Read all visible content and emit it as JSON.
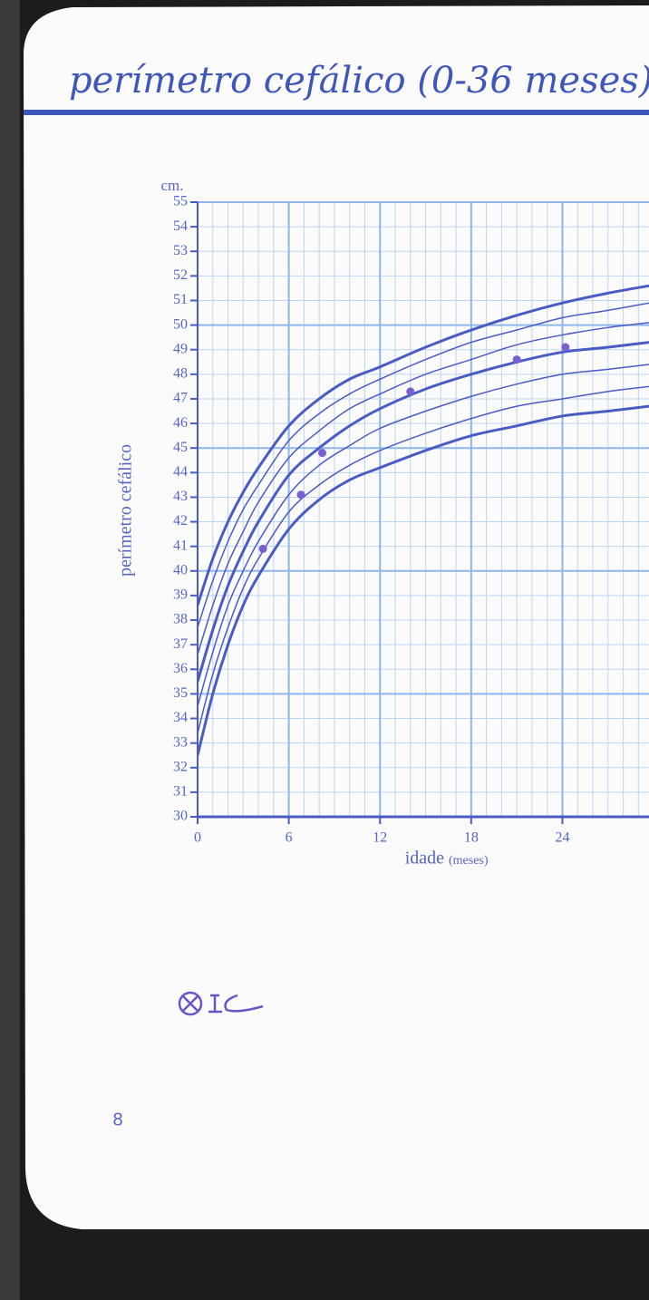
{
  "page_number": "8",
  "chart_data": {
    "type": "line",
    "title": "perímetro cefálico (0-36 meses)",
    "y_unit": "cm.",
    "y_label": "perímetro cefálico",
    "x_label": "idade",
    "x_unit": "(meses)",
    "x": [
      0,
      1,
      2,
      3,
      4,
      6,
      8,
      10,
      12,
      15,
      18,
      21,
      24,
      27,
      29.7
    ],
    "series": [
      {
        "color": "#4a5cc4",
        "values": [
          38.6,
          40.5,
          42.0,
          43.2,
          44.2,
          45.9,
          47.0,
          47.8,
          48.3,
          49.1,
          49.8,
          50.4,
          50.9,
          51.3,
          51.6
        ]
      },
      {
        "color": "#4a5cc4",
        "values": [
          37.7,
          39.6,
          41.2,
          42.5,
          43.5,
          45.3,
          46.4,
          47.2,
          47.8,
          48.6,
          49.3,
          49.8,
          50.3,
          50.6,
          50.9
        ]
      },
      {
        "color": "#4a5cc4",
        "values": [
          36.6,
          38.6,
          40.3,
          41.6,
          42.8,
          44.6,
          45.7,
          46.6,
          47.2,
          48.0,
          48.6,
          49.2,
          49.6,
          49.9,
          50.1
        ]
      },
      {
        "color": "#4a5cc4",
        "values": [
          35.5,
          37.6,
          39.4,
          40.8,
          42.0,
          43.9,
          45.0,
          45.9,
          46.6,
          47.4,
          48.0,
          48.5,
          48.9,
          49.1,
          49.3
        ]
      },
      {
        "color": "#4a5cc4",
        "values": [
          34.5,
          36.7,
          38.6,
          40.0,
          41.2,
          43.1,
          44.3,
          45.1,
          45.8,
          46.5,
          47.1,
          47.6,
          48.0,
          48.2,
          48.4
        ]
      },
      {
        "color": "#4a5cc4",
        "values": [
          33.4,
          35.8,
          37.7,
          39.3,
          40.5,
          42.4,
          43.5,
          44.3,
          44.9,
          45.6,
          46.2,
          46.7,
          47.0,
          47.3,
          47.5
        ]
      },
      {
        "color": "#4a5cc4",
        "values": [
          32.5,
          35.0,
          37.0,
          38.6,
          39.8,
          41.7,
          42.9,
          43.7,
          44.2,
          44.9,
          45.5,
          45.9,
          46.3,
          46.5,
          46.7
        ]
      }
    ],
    "points": {
      "color": "#7a5fd0",
      "x": [
        4.3,
        6.8,
        8.2,
        14,
        21,
        24.2
      ],
      "values": [
        40.9,
        43.1,
        44.8,
        47.3,
        48.6,
        49.1
      ]
    },
    "xlim": [
      0,
      29.7
    ],
    "ylim": [
      30,
      55
    ],
    "xticks": [
      0,
      6,
      12,
      18,
      24
    ],
    "xminorticks": [
      1,
      2,
      3,
      4,
      5,
      7,
      8,
      9,
      10,
      11,
      13,
      14,
      15,
      16,
      17,
      19,
      20,
      21,
      22,
      23,
      25,
      26,
      27,
      28,
      29
    ],
    "yticks": [
      30,
      31,
      32,
      33,
      34,
      35,
      36,
      37,
      38,
      39,
      40,
      41,
      42,
      43,
      44,
      45,
      46,
      47,
      48,
      49,
      50,
      51,
      52,
      53,
      54,
      55
    ],
    "grid": true
  }
}
